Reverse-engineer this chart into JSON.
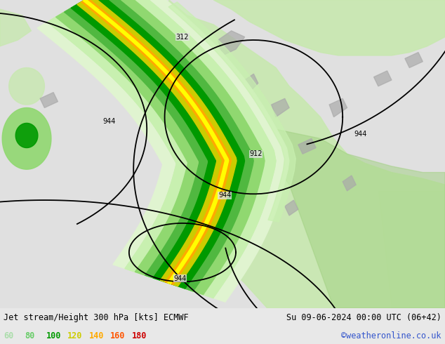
{
  "title_left": "Jet stream/Height 300 hPa [kts] ECMWF",
  "title_right": "Su 09-06-2024 00:00 UTC (06+42)",
  "credit": "©weatheronline.co.uk",
  "legend_values": [
    "60",
    "80",
    "100",
    "120",
    "140",
    "160",
    "180"
  ],
  "legend_colors": [
    "#aaddaa",
    "#66cc66",
    "#009900",
    "#cccc00",
    "#ffaa00",
    "#ff5500",
    "#cc0000"
  ],
  "bg_color": "#e8e8e8",
  "map_ocean_color": "#e0e0e0",
  "land_light_green": "#c8e8b0",
  "land_medium_green": "#a0d080",
  "jet_colors": [
    [
      "#c8f0b0",
      0.11
    ],
    [
      "#90d870",
      0.085
    ],
    [
      "#50b840",
      0.06
    ],
    [
      "#009900",
      0.04
    ],
    [
      "#cccc00",
      0.022
    ],
    [
      "#ffaa00",
      0.01
    ],
    [
      "#ffff00",
      0.004
    ]
  ],
  "contour_color": "#000000",
  "contour_lw": 1.3,
  "title_fontsize": 8.5,
  "legend_fontsize": 8.5,
  "credit_color": "#3355cc",
  "bottom_bg": "#d8d8d8"
}
